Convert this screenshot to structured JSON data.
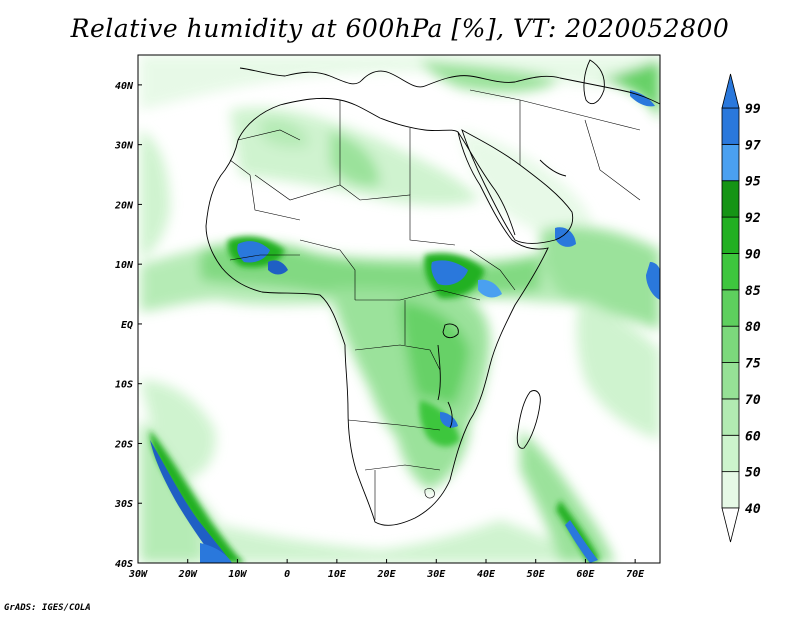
{
  "title": "Relative humidity at 600hPa [%], VT: 2020052800",
  "credit": "GrADS: IGES/COLA",
  "map": {
    "lon_range": [
      -30,
      75
    ],
    "lat_range": [
      -40,
      45
    ],
    "lon_ticks": [
      {
        "value": -30,
        "label": "30W"
      },
      {
        "value": -20,
        "label": "20W"
      },
      {
        "value": -10,
        "label": "10W"
      },
      {
        "value": 0,
        "label": "0"
      },
      {
        "value": 10,
        "label": "10E"
      },
      {
        "value": 20,
        "label": "20E"
      },
      {
        "value": 30,
        "label": "30E"
      },
      {
        "value": 40,
        "label": "40E"
      },
      {
        "value": 50,
        "label": "50E"
      },
      {
        "value": 60,
        "label": "60E"
      },
      {
        "value": 70,
        "label": "70E"
      }
    ],
    "lat_ticks": [
      {
        "value": 40,
        "label": "40N"
      },
      {
        "value": 30,
        "label": "30N"
      },
      {
        "value": 20,
        "label": "20N"
      },
      {
        "value": 10,
        "label": "10N"
      },
      {
        "value": 0,
        "label": "EQ"
      },
      {
        "value": -10,
        "label": "10S"
      },
      {
        "value": -20,
        "label": "20S"
      },
      {
        "value": -30,
        "label": "30S"
      },
      {
        "value": -40,
        "label": "40S"
      }
    ]
  },
  "colorbar": {
    "levels": [
      {
        "label": "40",
        "color": "#e6f9e6"
      },
      {
        "label": "50",
        "color": "#cdf3cd"
      },
      {
        "label": "60",
        "color": "#b2eab2"
      },
      {
        "label": "70",
        "color": "#96e196"
      },
      {
        "label": "75",
        "color": "#7cd87c"
      },
      {
        "label": "80",
        "color": "#5ecf5e"
      },
      {
        "label": "85",
        "color": "#3ec63e"
      },
      {
        "label": "90",
        "color": "#22b022"
      },
      {
        "label": "92",
        "color": "#159415"
      },
      {
        "label": "95",
        "color": "#4aa0f0"
      },
      {
        "label": "97",
        "color": "#2a78dc"
      },
      {
        "label": "99",
        "color": "#1f5fc4"
      }
    ],
    "low_end_color": "#ffffff",
    "high_end_color": "#2a78dc"
  },
  "colors": {
    "no_data": "#ffffff",
    "coastline": "#000000",
    "frame": "#000000"
  }
}
